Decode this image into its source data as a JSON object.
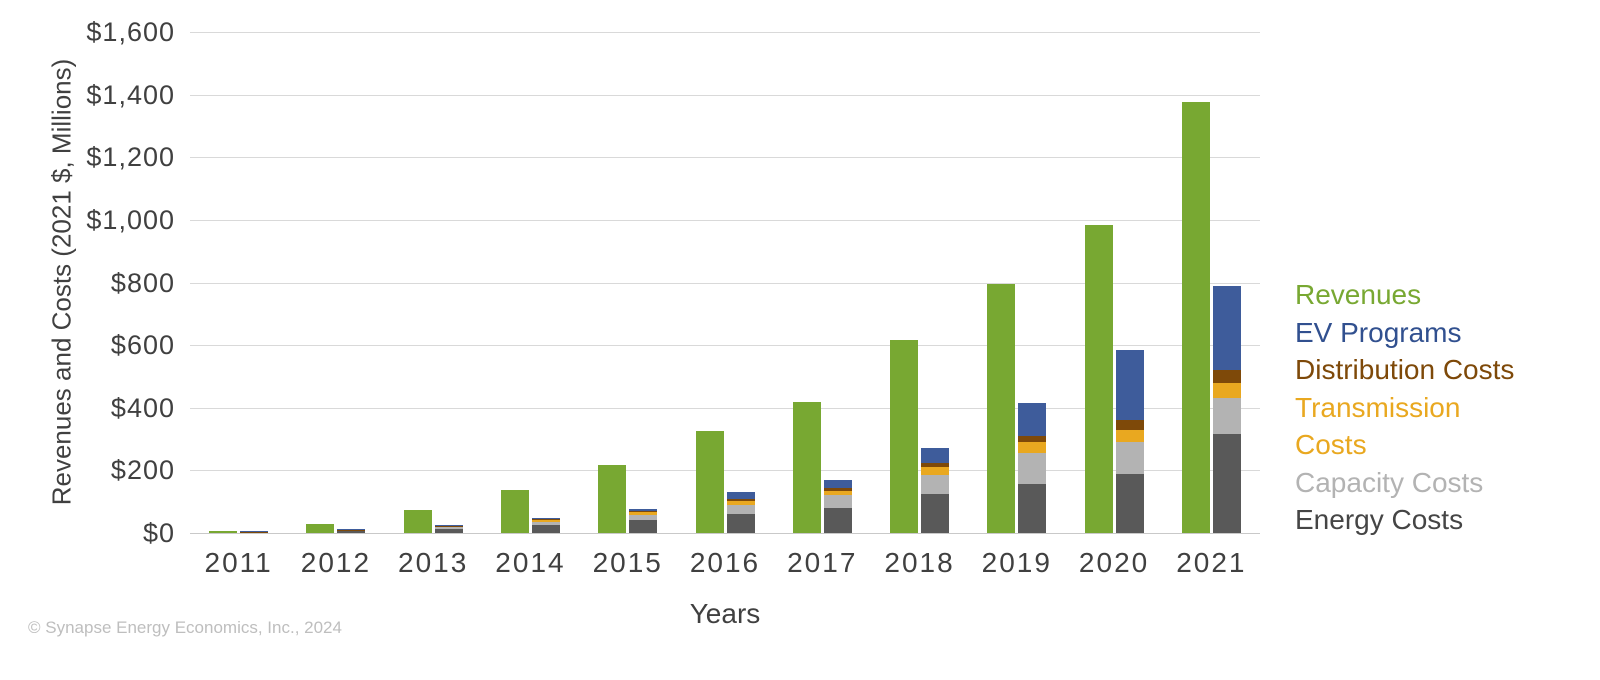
{
  "chart_data": {
    "type": "bar",
    "variant": "per-year pair: single revenue bar plus stacked costs bar",
    "title": "",
    "xlabel": "Years",
    "ylabel": "Revenues and Costs (2021 $, Millions)",
    "ylim": [
      0,
      1600
    ],
    "ytick_step": 200,
    "y_ticks": [
      "$0",
      "$200",
      "$400",
      "$600",
      "$800",
      "$1,000",
      "$1,200",
      "$1,400",
      "$1,600"
    ],
    "grid": true,
    "legend_position": "right",
    "categories": [
      "2011",
      "2012",
      "2013",
      "2014",
      "2015",
      "2016",
      "2017",
      "2018",
      "2019",
      "2020",
      "2021"
    ],
    "revenues": {
      "key": "revenues",
      "name": "Revenues",
      "color": "#78A832",
      "values": [
        5,
        28,
        73,
        138,
        218,
        325,
        418,
        615,
        795,
        985,
        1375
      ]
    },
    "costs_stack_bottom_to_top": [
      {
        "key": "energy-costs",
        "name": "Energy Costs",
        "color": "#595959",
        "values": [
          3,
          7,
          14,
          27,
          40,
          60,
          80,
          125,
          155,
          190,
          315
        ]
      },
      {
        "key": "capacity-costs",
        "name": "Capacity Costs",
        "color": "#B3B3B3",
        "values": [
          1,
          2.5,
          5,
          9,
          18,
          30,
          40,
          60,
          100,
          100,
          115
        ]
      },
      {
        "key": "transmission-costs",
        "name": "Transmission Costs",
        "color": "#E9A820",
        "values": [
          0.5,
          1,
          2.5,
          5,
          8,
          13,
          15,
          25,
          35,
          40,
          50
        ]
      },
      {
        "key": "distribution-costs",
        "name": "Distribution Costs",
        "color": "#7E4909",
        "values": [
          0.3,
          0.7,
          1.5,
          3,
          5,
          7,
          10,
          15,
          20,
          30,
          40
        ]
      },
      {
        "key": "ev-programs",
        "name": "EV Programs",
        "color": "#3E5C9B",
        "values": [
          0.2,
          1,
          2,
          4,
          7,
          20,
          25,
          45,
          105,
          225,
          270
        ]
      }
    ],
    "legend": [
      {
        "key": "revenues",
        "label": "Revenues",
        "color": "#78A832"
      },
      {
        "key": "ev-programs",
        "label": "EV Programs",
        "color": "#31508F"
      },
      {
        "key": "distribution-costs",
        "label": "Distribution Costs",
        "color": "#7E4909"
      },
      {
        "key": "transmission-costs",
        "label": "Transmission Costs",
        "color": "#E9A820"
      },
      {
        "key": "capacity-costs",
        "label": "Capacity Costs",
        "color": "#B3B3B3"
      },
      {
        "key": "energy-costs",
        "label": "Energy Costs",
        "color": "#454545"
      }
    ]
  },
  "footer": {
    "copyright": "© Synapse Energy Economics, Inc., 2024"
  }
}
